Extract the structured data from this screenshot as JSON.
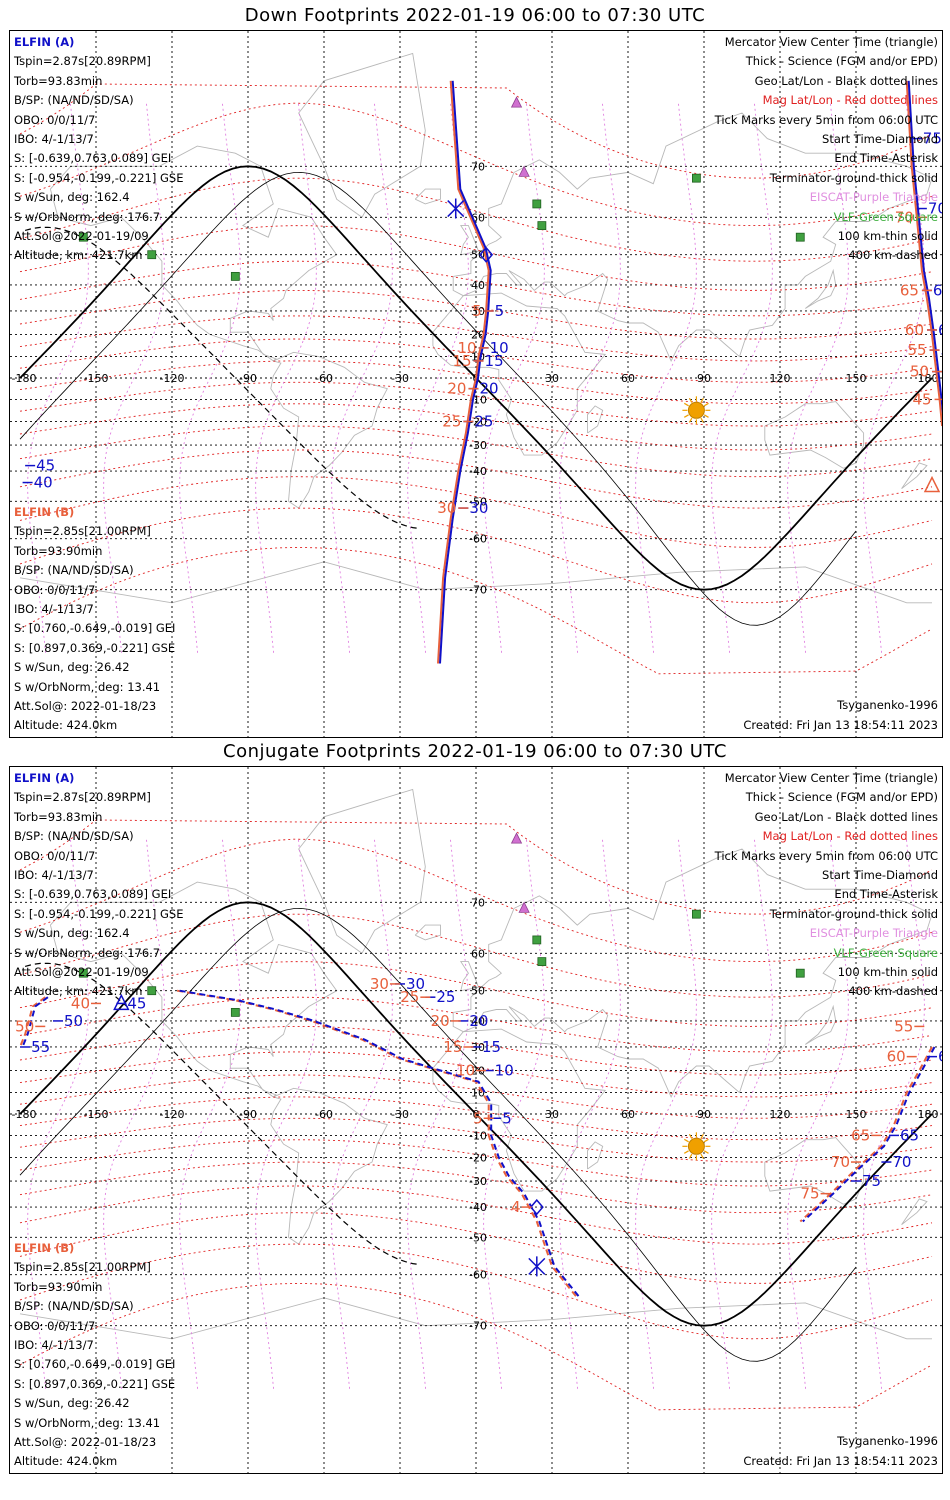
{
  "panels": [
    {
      "title": "Down Footprints 2022-01-19 06:00 to 07:30 UTC",
      "sat_a": {
        "name": "ELFIN (A)",
        "lines": [
          "Tspin=2.87s[20.89RPM]",
          "Torb=93.83min",
          "B/SP: (NA/ND/SD/SA)",
          "OBO: 0/0/11/7",
          "IBO: 4/-1/13/7",
          "S: [-0.639,0.763,0.089] GEI",
          "S: [-0.954,-0.199,-0.221] GSE",
          "S w/Sun, deg: 162.4",
          "S w/OrbNorm, deg: 176.7",
          "Att.Sol@2022-01-19/09",
          "Altitude, km: 421.7km"
        ]
      },
      "sat_b": {
        "name": "ELFIN (B)",
        "lines": [
          "Tspin=2.85s[21.00RPM]",
          "Torb=93.90min",
          "B/SP: (NA/ND/SD/SA)",
          "OBO: 0/0/11/7",
          "IBO: 4/-1/13/7",
          "S: [0.760,-0.649,-0.019] GEI",
          "S: [0.897,0.369,-0.221] GSE",
          "S w/Sun, deg: 26.42",
          "S w/OrbNorm, deg: 13.41",
          "Att.Sol@: 2022-01-18/23",
          "Altitude: 424.0km"
        ]
      },
      "legend": [
        "Mercator View Center Time (triangle)",
        "Thick - Science (FGM and/or EPD)",
        "Geo Lat/Lon - Black dotted lines",
        "Mag Lat/Lon - Red dotted lines",
        "Tick Marks every 5min from 06:00 UTC",
        "Start Time-Diamond",
        "End Time-Asterisk",
        "Terminator-ground-thick solid",
        "EISCAT-Purple Triangle",
        "VLF-Green Square",
        "100 km-thin solid",
        "400 km-dashed"
      ],
      "model": "Tsyganenko-1996",
      "created": "Created: Fri Jan 13 18:54:11 2023",
      "track_a_ticks": [
        "75",
        "70",
        "65",
        "60",
        "55",
        "50",
        "5",
        "10",
        "15",
        "20",
        "25",
        "30"
      ],
      "track_b_ticks": [
        "75",
        "70",
        "65",
        "60",
        "55",
        "50",
        "45",
        "5",
        "10",
        "15",
        "20",
        "25",
        "30",
        "40",
        "45"
      ]
    },
    {
      "title": "Conjugate Footprints 2022-01-19 06:00 to 07:30 UTC",
      "sat_a": {
        "name": "ELFIN (A)",
        "lines": [
          "Tspin=2.87s[20.89RPM]",
          "Torb=93.83min",
          "B/SP: (NA/ND/SD/SA)",
          "OBO: 0/0/11/7",
          "IBO: 4/-1/13/7",
          "S: [-0.639,0.763,0.089] GEI",
          "S: [-0.954,-0.199,-0.221] GSE",
          "S w/Sun, deg: 162.4",
          "S w/OrbNorm, deg: 176.7",
          "Att.Sol@2022-01-19/09",
          "Altitude, km: 421.7km"
        ]
      },
      "sat_b": {
        "name": "ELFIN (B)",
        "lines": [
          "Tspin=2.85s[21.00RPM]",
          "Torb=93.90min",
          "B/SP: (NA/ND/SD/SA)",
          "OBO: 0/0/11/7",
          "IBO: 4/-1/13/7",
          "S: [0.760,-0.649,-0.019] GEI",
          "S: [0.897,0.369,-0.221] GSE",
          "S w/Sun, deg: 26.42",
          "S w/OrbNorm, deg: 13.41",
          "Att.Sol@: 2022-01-18/23",
          "Altitude: 424.0km"
        ]
      },
      "legend": [
        "Mercator View Center Time (triangle)",
        "Thick - Science (FGM and/or EPD)",
        "Geo Lat/Lon - Black dotted lines",
        "Mag Lat/Lon - Red dotted lines",
        "Tick Marks every 5min from 06:00 UTC",
        "Start Time-Diamond",
        "End Time-Asterisk",
        "Terminator-ground-thick solid",
        "EISCAT-Purple Triangle",
        "VLF-Green Square",
        "100 km-thin solid",
        "400 km-dashed"
      ],
      "model": "Tsyganenko-1996",
      "created": "Created: Fri Jan 13 18:54:11 2023",
      "track_a_ticks": [
        "45",
        "50",
        "55",
        "30",
        "25",
        "20",
        "15",
        "10",
        "5",
        "60",
        "65",
        "70",
        "75"
      ],
      "track_b_ticks": [
        "40",
        "50",
        "30",
        "25",
        "20",
        "15",
        "10",
        "5",
        "4",
        "55",
        "60",
        "65",
        "70",
        "75"
      ]
    }
  ],
  "map": {
    "lon_ticks": [
      "-180",
      "-150",
      "-120",
      "-90",
      "-60",
      "-30",
      "0",
      "30",
      "60",
      "90",
      "120",
      "150",
      "180"
    ],
    "lat_ticks": [
      "70",
      "60",
      "50",
      "40",
      "30",
      "20",
      "10",
      "-10",
      "-20",
      "-30",
      "-40",
      "-50",
      "-60",
      "-70"
    ],
    "lon_range": [
      -180,
      180
    ],
    "lat_range": [
      -80,
      80
    ],
    "projection": "mercator",
    "grid": true
  },
  "colors": {
    "sat_a": "#1010c8",
    "sat_b": "#e8603c",
    "mag_grid": "#e02020",
    "eiscat": "#d070d0",
    "vlf": "#40a040",
    "sun": "#f0a000"
  }
}
